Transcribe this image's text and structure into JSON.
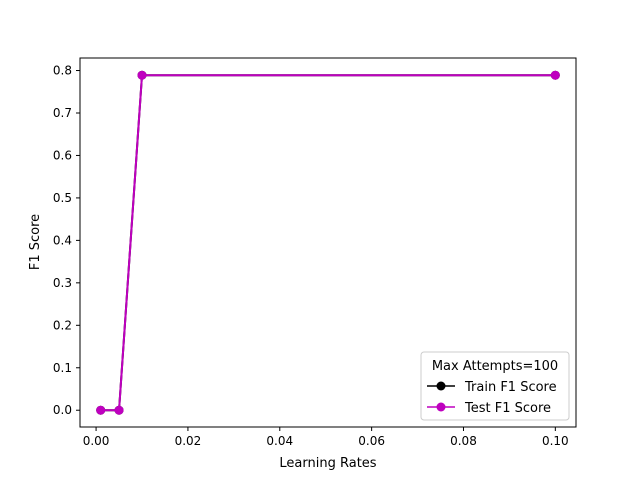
{
  "chart_data": {
    "type": "line",
    "title": "",
    "xlabel": "Learning Rates",
    "ylabel": "F1 Score",
    "xlim": [
      -0.0035,
      0.1045
    ],
    "ylim": [
      -0.0395,
      0.8295
    ],
    "xticks": [
      0.0,
      0.02,
      0.04,
      0.06,
      0.08,
      0.1
    ],
    "xtick_labels": [
      "0.00",
      "0.02",
      "0.04",
      "0.06",
      "0.08",
      "0.10"
    ],
    "yticks": [
      0.0,
      0.1,
      0.2,
      0.3,
      0.4,
      0.5,
      0.6,
      0.7,
      0.8
    ],
    "ytick_labels": [
      "0.0",
      "0.1",
      "0.2",
      "0.3",
      "0.4",
      "0.5",
      "0.6",
      "0.7",
      "0.8"
    ],
    "grid": false,
    "legend": {
      "title": "Max Attempts=100",
      "placement": "lower right"
    },
    "x": [
      0.001,
      0.005,
      0.01,
      0.1
    ],
    "series": [
      {
        "name": "Train F1 Score",
        "color": "#000000",
        "marker": "circle",
        "values": [
          0.0,
          0.0,
          0.789,
          0.789
        ]
      },
      {
        "name": "Test F1 Score",
        "color": "#bf00bf",
        "marker": "circle",
        "values": [
          0.0,
          0.0,
          0.789,
          0.789
        ]
      }
    ]
  }
}
